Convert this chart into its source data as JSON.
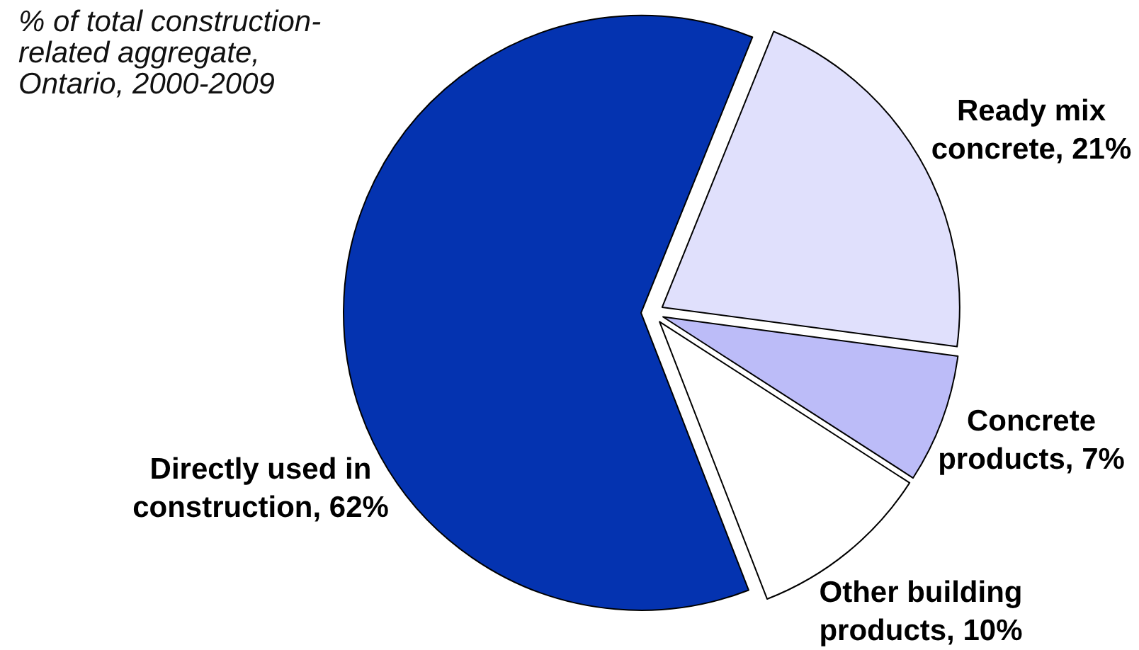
{
  "chart_data": {
    "type": "pie",
    "title": "% of total construction-related aggregate, Ontario, 2000-2009",
    "categories": [
      "Ready mix concrete",
      "Concrete products",
      "Other building products",
      "Directly used in construction"
    ],
    "values": [
      21,
      7,
      10,
      62
    ],
    "colors": [
      "#e0e0fc",
      "#bcbcf8",
      "#ffffff",
      "#0433b0"
    ],
    "value_labels": [
      "21%",
      "7%",
      "10%",
      "62%"
    ]
  }
}
